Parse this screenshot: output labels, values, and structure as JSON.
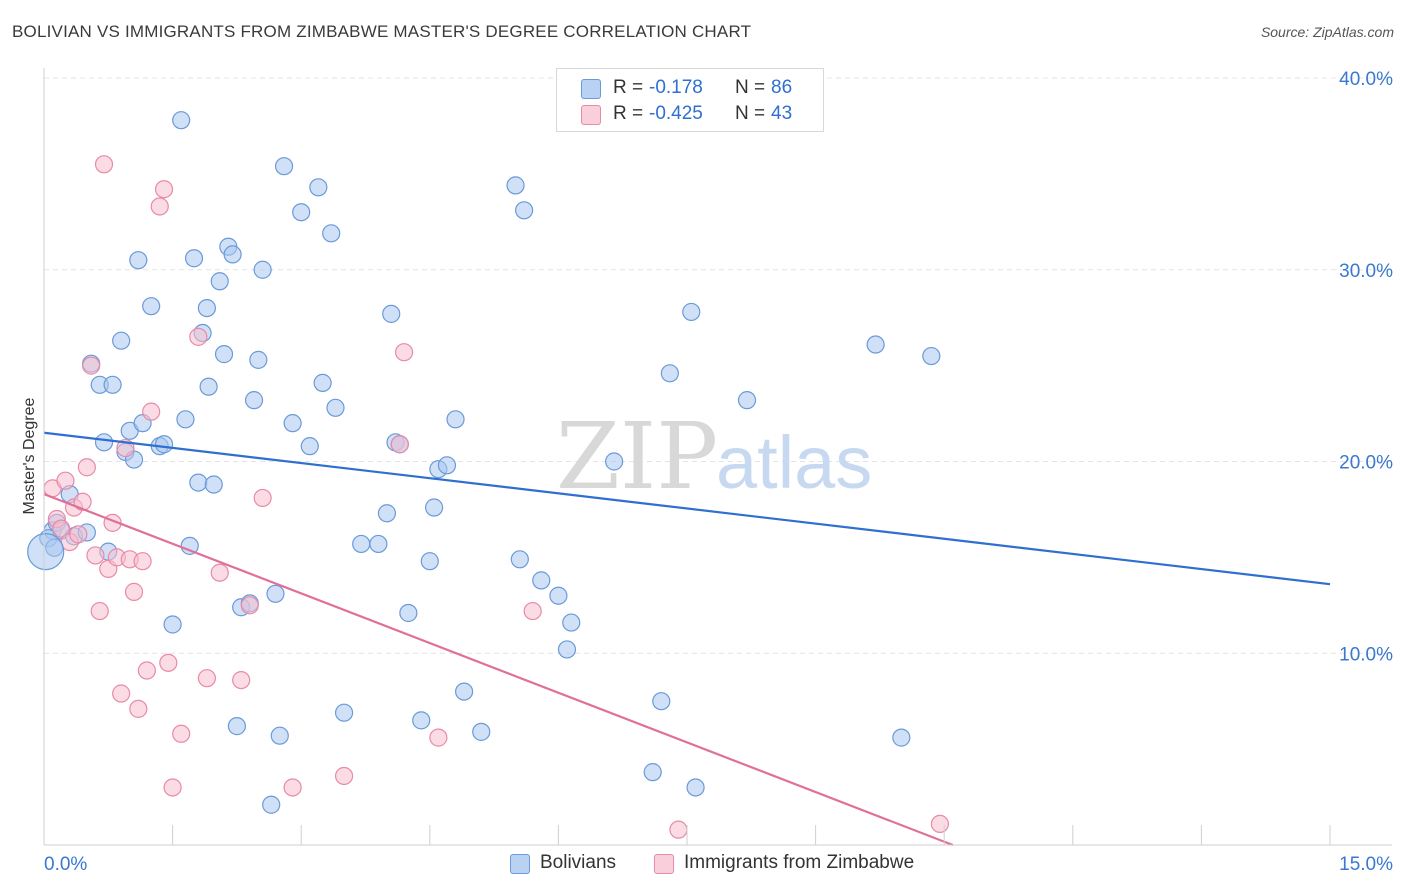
{
  "header": {
    "title": "BOLIVIAN VS IMMIGRANTS FROM ZIMBABWE MASTER'S DEGREE CORRELATION CHART",
    "source": "Source: ZipAtlas.com"
  },
  "legend": {
    "rows": [
      {
        "r_label": "R =",
        "r_value": "-0.178",
        "n_label": "N =",
        "n_value": "86"
      },
      {
        "r_label": "R =",
        "r_value": "-0.425",
        "n_label": "N =",
        "n_value": "43"
      }
    ],
    "bottom": [
      "Bolivians",
      "Immigrants from Zimbabwe"
    ]
  },
  "colors": {
    "blue_fill": "#a9c8f0",
    "blue_stroke": "#6a9ad8",
    "blue_line": "#2f6fd0",
    "pink_fill": "#f7bfd0",
    "pink_stroke": "#e88aa8",
    "pink_line": "#e0709a",
    "tick_label": "#3a78d0",
    "grid": "#e3e3e3",
    "watermark": "#d6d6d6"
  },
  "chart_data": {
    "type": "scatter",
    "title": "BOLIVIAN VS IMMIGRANTS FROM ZIMBABWE MASTER'S DEGREE CORRELATION CHART",
    "xlabel": "",
    "ylabel": "Master's Degree",
    "xlim": [
      0,
      15
    ],
    "ylim": [
      0,
      40
    ],
    "x_tick_labels": [
      "0.0%",
      "15.0%"
    ],
    "y_tick_labels": [
      "10.0%",
      "20.0%",
      "30.0%",
      "40.0%"
    ],
    "y_ticks": [
      10,
      20,
      30,
      40
    ],
    "grid": true,
    "watermark": "ZIPatlas",
    "series": [
      {
        "name": "Bolivians",
        "r": -0.178,
        "n": 86,
        "trend": {
          "x": [
            0,
            15
          ],
          "y": [
            21.5,
            13.6
          ]
        },
        "points": [
          [
            0.1,
            16.4
          ],
          [
            0.15,
            16.8
          ],
          [
            0.2,
            16.4
          ],
          [
            0.3,
            18.3
          ],
          [
            0.35,
            16.1
          ],
          [
            0.5,
            16.3
          ],
          [
            0.55,
            25.1
          ],
          [
            0.65,
            24.0
          ],
          [
            0.7,
            21.0
          ],
          [
            0.8,
            24.0
          ],
          [
            0.9,
            26.3
          ],
          [
            0.75,
            15.3
          ],
          [
            0.95,
            20.5
          ],
          [
            1.0,
            21.6
          ],
          [
            1.05,
            20.1
          ],
          [
            1.1,
            30.5
          ],
          [
            1.15,
            22.0
          ],
          [
            1.25,
            28.1
          ],
          [
            1.35,
            20.8
          ],
          [
            1.4,
            20.9
          ],
          [
            1.5,
            11.5
          ],
          [
            1.6,
            37.8
          ],
          [
            1.65,
            22.2
          ],
          [
            1.7,
            15.6
          ],
          [
            1.75,
            30.6
          ],
          [
            1.8,
            18.9
          ],
          [
            1.85,
            26.7
          ],
          [
            1.9,
            28.0
          ],
          [
            1.92,
            23.9
          ],
          [
            1.98,
            18.8
          ],
          [
            2.05,
            29.4
          ],
          [
            2.1,
            25.6
          ],
          [
            2.15,
            31.2
          ],
          [
            2.2,
            30.8
          ],
          [
            2.25,
            6.2
          ],
          [
            2.3,
            12.4
          ],
          [
            2.4,
            12.6
          ],
          [
            2.45,
            23.2
          ],
          [
            2.5,
            25.3
          ],
          [
            2.55,
            30.0
          ],
          [
            2.7,
            13.1
          ],
          [
            2.75,
            5.7
          ],
          [
            2.8,
            35.4
          ],
          [
            2.9,
            22.0
          ],
          [
            2.65,
            2.1
          ],
          [
            3.0,
            33.0
          ],
          [
            3.1,
            20.8
          ],
          [
            3.2,
            34.3
          ],
          [
            3.25,
            24.1
          ],
          [
            3.35,
            31.9
          ],
          [
            3.4,
            22.8
          ],
          [
            3.5,
            6.9
          ],
          [
            3.7,
            15.7
          ],
          [
            3.9,
            15.7
          ],
          [
            4.0,
            17.3
          ],
          [
            4.05,
            27.7
          ],
          [
            4.1,
            21.0
          ],
          [
            4.15,
            20.9
          ],
          [
            4.25,
            12.1
          ],
          [
            4.4,
            6.5
          ],
          [
            4.5,
            14.8
          ],
          [
            4.55,
            17.6
          ],
          [
            4.6,
            19.6
          ],
          [
            4.7,
            19.8
          ],
          [
            4.8,
            22.2
          ],
          [
            4.9,
            8.0
          ],
          [
            5.1,
            5.9
          ],
          [
            5.5,
            34.4
          ],
          [
            5.55,
            14.9
          ],
          [
            5.6,
            33.1
          ],
          [
            5.8,
            13.8
          ],
          [
            6.0,
            13.0
          ],
          [
            6.1,
            10.2
          ],
          [
            6.15,
            11.6
          ],
          [
            6.65,
            20.0
          ],
          [
            7.1,
            3.8
          ],
          [
            7.2,
            7.5
          ],
          [
            7.3,
            24.6
          ],
          [
            7.55,
            27.8
          ],
          [
            7.6,
            3.0
          ],
          [
            8.2,
            23.2
          ],
          [
            9.7,
            26.1
          ],
          [
            10.0,
            5.6
          ],
          [
            10.35,
            25.5
          ],
          [
            0.05,
            16.0
          ],
          [
            0.12,
            15.5
          ]
        ]
      },
      {
        "name": "Immigrants from Zimbabwe",
        "r": -0.425,
        "n": 43,
        "trend": {
          "x": [
            0,
            10.6
          ],
          "y": [
            18.3,
            0
          ]
        },
        "points": [
          [
            0.1,
            18.6
          ],
          [
            0.15,
            17.0
          ],
          [
            0.2,
            16.5
          ],
          [
            0.25,
            19.0
          ],
          [
            0.3,
            15.8
          ],
          [
            0.35,
            17.6
          ],
          [
            0.4,
            16.2
          ],
          [
            0.45,
            17.9
          ],
          [
            0.5,
            19.7
          ],
          [
            0.55,
            25.0
          ],
          [
            0.6,
            15.1
          ],
          [
            0.65,
            12.2
          ],
          [
            0.7,
            35.5
          ],
          [
            0.75,
            14.4
          ],
          [
            0.8,
            16.8
          ],
          [
            0.85,
            15.0
          ],
          [
            0.9,
            7.9
          ],
          [
            0.95,
            20.7
          ],
          [
            1.0,
            14.9
          ],
          [
            1.05,
            13.2
          ],
          [
            1.1,
            7.1
          ],
          [
            1.15,
            14.8
          ],
          [
            1.2,
            9.1
          ],
          [
            1.25,
            22.6
          ],
          [
            1.35,
            33.3
          ],
          [
            1.4,
            34.2
          ],
          [
            1.45,
            9.5
          ],
          [
            1.5,
            3.0
          ],
          [
            1.6,
            5.8
          ],
          [
            1.8,
            26.5
          ],
          [
            1.9,
            8.7
          ],
          [
            2.05,
            14.2
          ],
          [
            2.3,
            8.6
          ],
          [
            2.4,
            12.5
          ],
          [
            2.55,
            18.1
          ],
          [
            2.9,
            3.0
          ],
          [
            3.5,
            3.6
          ],
          [
            4.15,
            20.9
          ],
          [
            4.2,
            25.7
          ],
          [
            4.6,
            5.6
          ],
          [
            5.7,
            12.2
          ],
          [
            7.4,
            0.8
          ],
          [
            10.45,
            1.1
          ]
        ]
      }
    ]
  }
}
